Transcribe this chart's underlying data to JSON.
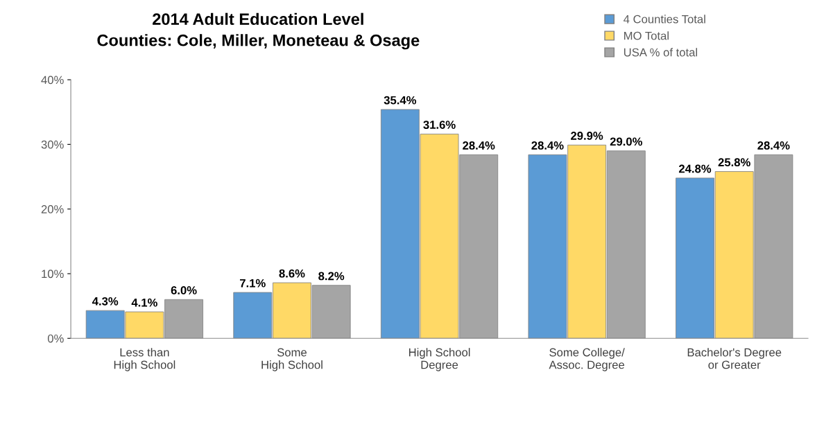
{
  "chart_data": {
    "type": "bar",
    "title": "2014 Adult Education Level\nCounties: Cole, Miller, Moneteau & Osage",
    "categories": [
      "Less than\nHigh School",
      "Some\nHigh School",
      "High School\nDegree",
      "Some College/\nAssoc. Degree",
      "Bachelor's Degree\nor Greater"
    ],
    "series": [
      {
        "name": "4 Counties Total",
        "color": "#5b9bd5",
        "values": [
          4.3,
          7.1,
          35.4,
          28.4,
          24.8
        ],
        "value_labels": [
          "4.3%",
          "7.1%",
          "35.4%",
          "28.4%",
          "24.8%"
        ]
      },
      {
        "name": "MO Total",
        "color": "#ffd966",
        "values": [
          4.1,
          8.6,
          31.6,
          29.9,
          25.8
        ],
        "value_labels": [
          "4.1%",
          "8.6%",
          "31.6%",
          "29.9%",
          "25.8%"
        ]
      },
      {
        "name": "USA % of total",
        "color": "#a5a5a5",
        "values": [
          6.0,
          8.2,
          28.4,
          29.0,
          28.4
        ],
        "value_labels": [
          "6.0%",
          "8.2%",
          "28.4%",
          "29.0%",
          "28.4%"
        ]
      }
    ],
    "ylim": [
      0,
      40
    ],
    "yticks": [
      {
        "value": 0,
        "label": "0%"
      },
      {
        "value": 10,
        "label": "10%"
      },
      {
        "value": 20,
        "label": "20%"
      },
      {
        "value": 30,
        "label": "30%"
      },
      {
        "value": 40,
        "label": "40%"
      }
    ],
    "grid": false,
    "legend": "top right"
  }
}
